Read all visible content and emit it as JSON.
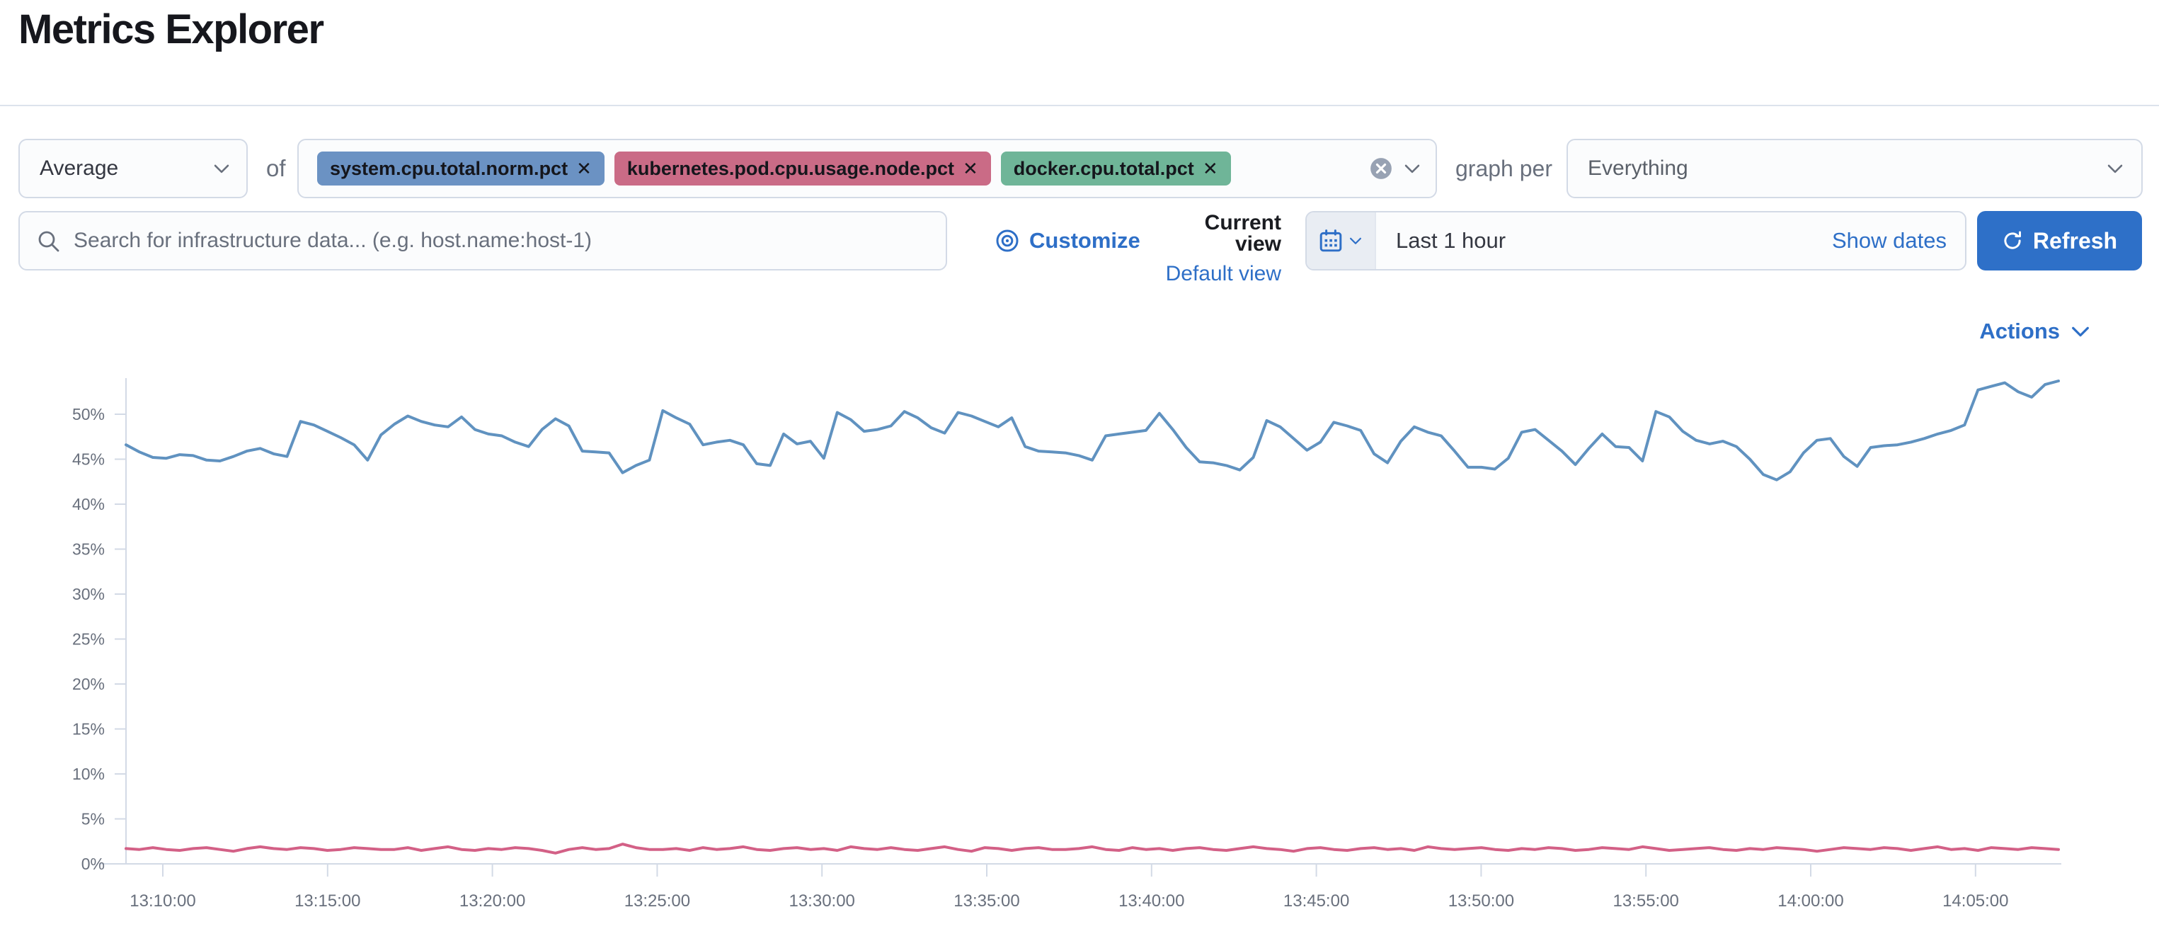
{
  "page": {
    "title": "Metrics Explorer"
  },
  "toolbar": {
    "aggregation": {
      "value": "Average"
    },
    "of_label": "of",
    "pill_remove_glyph": "✕",
    "metrics": [
      {
        "label": "system.cpu.total.norm.pct",
        "color": "#6b92c3"
      },
      {
        "label": "kubernetes.pod.cpu.usage.node.pct",
        "color": "#ca6b86"
      },
      {
        "label": "docker.cpu.total.pct",
        "color": "#6fb598"
      }
    ],
    "graph_per_label": "graph per",
    "group_by": {
      "value": "Everything"
    }
  },
  "search": {
    "placeholder": "Search for infrastructure data... (e.g. host.name:host-1)"
  },
  "view_controls": {
    "customize_label": "Customize",
    "current_view_label": "Current view",
    "view_name": "Default view"
  },
  "time_controls": {
    "range_label": "Last 1 hour",
    "show_dates_label": "Show dates",
    "refresh_label": "Refresh"
  },
  "actions": {
    "label": "Actions"
  },
  "chart_data": {
    "type": "line",
    "title": "",
    "xlabel": "",
    "ylabel": "",
    "grid": false,
    "legend": "none",
    "ylim": [
      0,
      54
    ],
    "y_tick_suffix": "%",
    "y_ticks": [
      0,
      5,
      10,
      15,
      20,
      25,
      30,
      35,
      40,
      45,
      50
    ],
    "x_tick_labels": [
      "13:10:00",
      "13:15:00",
      "13:20:00",
      "13:25:00",
      "13:30:00",
      "13:35:00",
      "13:40:00",
      "13:45:00",
      "13:50:00",
      "13:55:00",
      "14:00:00",
      "14:05:00"
    ],
    "series": [
      {
        "name": "Average system.cpu.total.norm.pct",
        "color": "#6092C0",
        "values": [
          46.6,
          45.8,
          45.2,
          45.1,
          45.5,
          45.4,
          44.9,
          44.8,
          45.3,
          45.9,
          46.2,
          45.6,
          45.3,
          49.2,
          48.8,
          48.1,
          47.4,
          46.6,
          44.9,
          47.7,
          48.9,
          49.8,
          49.2,
          48.8,
          48.6,
          49.7,
          48.3,
          47.8,
          47.6,
          46.9,
          46.4,
          48.3,
          49.5,
          48.7,
          45.9,
          45.8,
          45.7,
          43.5,
          44.3,
          44.9,
          50.4,
          49.6,
          48.9,
          46.6,
          46.9,
          47.1,
          46.6,
          44.5,
          44.3,
          47.8,
          46.7,
          47.0,
          45.1,
          50.2,
          49.4,
          48.1,
          48.3,
          48.7,
          50.3,
          49.6,
          48.5,
          47.9,
          50.2,
          49.8,
          49.2,
          48.6,
          49.6,
          46.4,
          45.9,
          45.8,
          45.7,
          45.4,
          44.9,
          47.6,
          47.8,
          48.0,
          48.2,
          50.1,
          48.3,
          46.3,
          44.7,
          44.6,
          44.3,
          43.8,
          45.2,
          49.3,
          48.6,
          47.3,
          46.0,
          46.9,
          49.1,
          48.7,
          48.2,
          45.6,
          44.6,
          47.0,
          48.6,
          48.0,
          47.6,
          45.9,
          44.1,
          44.1,
          43.9,
          45.1,
          48.0,
          48.3,
          47.1,
          45.9,
          44.4,
          46.2,
          47.8,
          46.4,
          46.3,
          44.8,
          50.3,
          49.7,
          48.1,
          47.1,
          46.7,
          47.0,
          46.4,
          45.0,
          43.3,
          42.7,
          43.6,
          45.7,
          47.1,
          47.3,
          45.3,
          44.2,
          46.3,
          46.5,
          46.6,
          46.9,
          47.3,
          47.8,
          48.2,
          48.8,
          52.7,
          53.1,
          53.5,
          52.5,
          51.9,
          53.3,
          53.7
        ]
      },
      {
        "name": "Average kubernetes.pod.cpu.usage.node.pct",
        "color": "#D36086",
        "values": [
          1.7,
          1.6,
          1.8,
          1.6,
          1.5,
          1.7,
          1.8,
          1.6,
          1.4,
          1.7,
          1.9,
          1.7,
          1.6,
          1.8,
          1.7,
          1.5,
          1.6,
          1.8,
          1.7,
          1.6,
          1.6,
          1.8,
          1.5,
          1.7,
          1.9,
          1.6,
          1.5,
          1.7,
          1.6,
          1.8,
          1.7,
          1.5,
          1.2,
          1.6,
          1.8,
          1.6,
          1.7,
          2.2,
          1.8,
          1.6,
          1.6,
          1.7,
          1.5,
          1.8,
          1.6,
          1.7,
          1.9,
          1.6,
          1.5,
          1.7,
          1.8,
          1.6,
          1.7,
          1.5,
          1.9,
          1.7,
          1.6,
          1.8,
          1.6,
          1.5,
          1.7,
          1.9,
          1.6,
          1.4,
          1.8,
          1.7,
          1.5,
          1.7,
          1.8,
          1.6,
          1.6,
          1.7,
          1.9,
          1.6,
          1.5,
          1.8,
          1.6,
          1.7,
          1.5,
          1.7,
          1.8,
          1.6,
          1.5,
          1.7,
          1.9,
          1.7,
          1.6,
          1.4,
          1.7,
          1.8,
          1.6,
          1.5,
          1.7,
          1.8,
          1.6,
          1.7,
          1.5,
          1.9,
          1.7,
          1.6,
          1.7,
          1.8,
          1.6,
          1.5,
          1.7,
          1.6,
          1.8,
          1.7,
          1.5,
          1.6,
          1.8,
          1.7,
          1.6,
          1.9,
          1.7,
          1.5,
          1.6,
          1.7,
          1.8,
          1.6,
          1.5,
          1.7,
          1.6,
          1.8,
          1.7,
          1.6,
          1.4,
          1.6,
          1.8,
          1.7,
          1.6,
          1.8,
          1.7,
          1.5,
          1.7,
          1.9,
          1.6,
          1.7,
          1.5,
          1.8,
          1.7,
          1.6,
          1.8,
          1.7,
          1.6
        ]
      }
    ]
  }
}
